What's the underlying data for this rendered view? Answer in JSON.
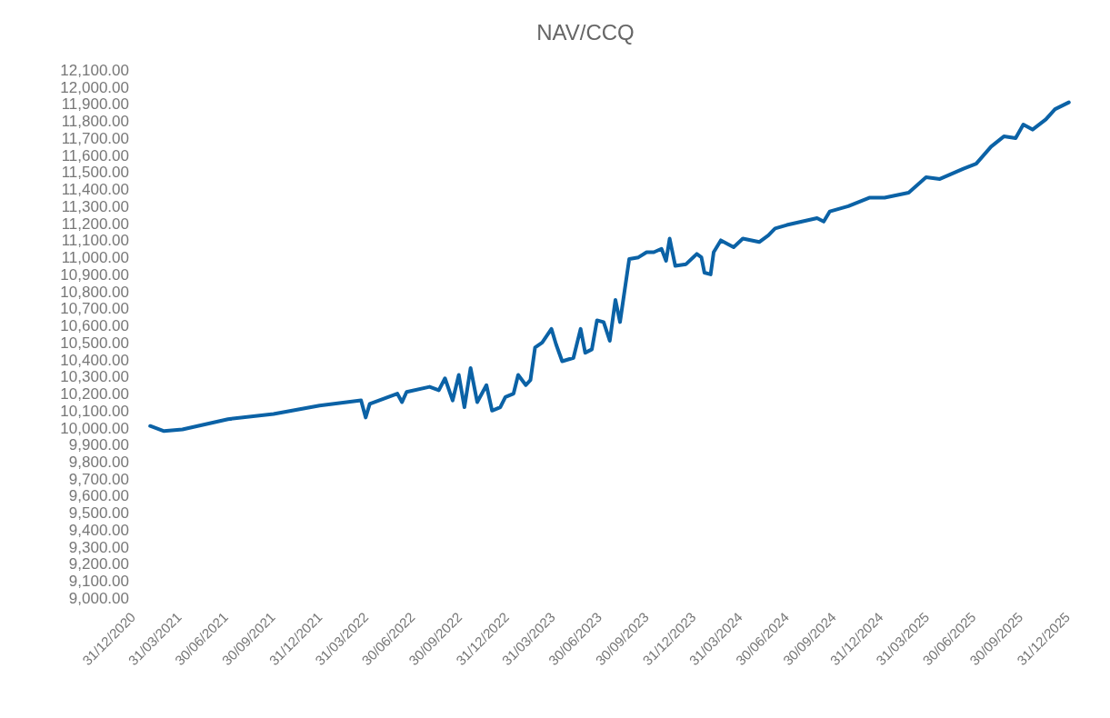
{
  "chart_data": {
    "type": "line",
    "title": "NAV/CCQ",
    "x": [
      "2021-01-27",
      "2021-02-23",
      "2021-03-31",
      "2021-06-28",
      "2021-09-25",
      "2021-12-24",
      "2022-03-15",
      "2022-03-24",
      "2022-04-01",
      "2022-05-25",
      "2022-06-03",
      "2022-06-12",
      "2022-07-27",
      "2022-08-14",
      "2022-08-26",
      "2022-09-10",
      "2022-09-22",
      "2022-10-03",
      "2022-10-15",
      "2022-10-28",
      "2022-11-15",
      "2022-11-26",
      "2022-12-12",
      "2022-12-22",
      "2023-01-07",
      "2023-01-16",
      "2023-01-31",
      "2023-02-09",
      "2023-02-18",
      "2023-03-04",
      "2023-03-22",
      "2023-03-31",
      "2023-04-12",
      "2023-05-04",
      "2023-05-18",
      "2023-05-27",
      "2023-06-09",
      "2023-06-19",
      "2023-07-02",
      "2023-07-14",
      "2023-07-25",
      "2023-08-03",
      "2023-08-21",
      "2023-09-08",
      "2023-09-24",
      "2023-10-08",
      "2023-10-23",
      "2023-11-01",
      "2023-11-08",
      "2023-11-19",
      "2023-12-10",
      "2023-12-31",
      "2024-01-09",
      "2024-01-15",
      "2024-01-27",
      "2024-02-02",
      "2024-02-16",
      "2024-03-12",
      "2024-03-30",
      "2024-05-01",
      "2024-05-19",
      "2024-06-01",
      "2024-06-24",
      "2024-08-22",
      "2024-09-04",
      "2024-09-16",
      "2024-10-22",
      "2024-12-02",
      "2025-01-01",
      "2025-02-17",
      "2025-03-23",
      "2025-04-19",
      "2025-06-04",
      "2025-06-29",
      "2025-07-28",
      "2025-08-22",
      "2025-09-14",
      "2025-09-29",
      "2025-10-17",
      "2025-11-12",
      "2025-11-30",
      "2025-12-27"
    ],
    "series": [
      {
        "color": "#0b62a6",
        "values": [
          10010,
          9980,
          9990,
          10050,
          10080,
          10130,
          10160,
          10060,
          10140,
          10200,
          10150,
          10210,
          10240,
          10220,
          10290,
          10160,
          10310,
          10120,
          10350,
          10150,
          10250,
          10100,
          10120,
          10180,
          10200,
          10310,
          10250,
          10280,
          10470,
          10500,
          10580,
          10490,
          10390,
          10410,
          10580,
          10440,
          10460,
          10630,
          10620,
          10510,
          10750,
          10620,
          10990,
          11000,
          11030,
          11030,
          11050,
          10980,
          11110,
          10950,
          10960,
          11020,
          11000,
          10910,
          10900,
          11030,
          11100,
          11060,
          11110,
          11090,
          11130,
          11170,
          11190,
          11230,
          11210,
          11270,
          11300,
          11350,
          11350,
          11380,
          11470,
          11460,
          11520,
          11550,
          11650,
          11710,
          11700,
          11780,
          11750,
          11810,
          11870,
          11910
        ]
      }
    ],
    "xlim": [
      "2020-12-31",
      "2025-12-31"
    ],
    "xticks": [
      {
        "value": "2020-12-31",
        "label": "31/12/2020"
      },
      {
        "value": "2021-03-31",
        "label": "31/03/2021"
      },
      {
        "value": "2021-06-30",
        "label": "30/06/2021"
      },
      {
        "value": "2021-09-30",
        "label": "30/09/2021"
      },
      {
        "value": "2021-12-31",
        "label": "31/12/2021"
      },
      {
        "value": "2022-03-31",
        "label": "31/03/2022"
      },
      {
        "value": "2022-06-30",
        "label": "30/06/2022"
      },
      {
        "value": "2022-09-30",
        "label": "30/09/2022"
      },
      {
        "value": "2022-12-31",
        "label": "31/12/2022"
      },
      {
        "value": "2023-03-31",
        "label": "31/03/2023"
      },
      {
        "value": "2023-06-30",
        "label": "30/06/2023"
      },
      {
        "value": "2023-09-30",
        "label": "30/09/2023"
      },
      {
        "value": "2023-12-31",
        "label": "31/12/2023"
      },
      {
        "value": "2024-03-31",
        "label": "31/03/2024"
      },
      {
        "value": "2024-06-30",
        "label": "30/06/2024"
      },
      {
        "value": "2024-09-30",
        "label": "30/09/2024"
      },
      {
        "value": "2024-12-31",
        "label": "31/12/2024"
      },
      {
        "value": "2025-03-31",
        "label": "31/03/2025"
      },
      {
        "value": "2025-06-30",
        "label": "30/06/2025"
      },
      {
        "value": "2025-09-30",
        "label": "30/09/2025"
      },
      {
        "value": "2025-12-31",
        "label": "31/12/2025"
      }
    ],
    "ylim": [
      9000,
      12100
    ],
    "yticks": [
      {
        "value": 9000,
        "label": "9,000.00"
      },
      {
        "value": 9100,
        "label": "9,100.00"
      },
      {
        "value": 9200,
        "label": "9,200.00"
      },
      {
        "value": 9300,
        "label": "9,300.00"
      },
      {
        "value": 9400,
        "label": "9,400.00"
      },
      {
        "value": 9500,
        "label": "9,500.00"
      },
      {
        "value": 9600,
        "label": "9,600.00"
      },
      {
        "value": 9700,
        "label": "9,700.00"
      },
      {
        "value": 9800,
        "label": "9,800.00"
      },
      {
        "value": 9900,
        "label": "9,900.00"
      },
      {
        "value": 10000,
        "label": "10,000.00"
      },
      {
        "value": 10100,
        "label": "10,100.00"
      },
      {
        "value": 10200,
        "label": "10,200.00"
      },
      {
        "value": 10300,
        "label": "10,300.00"
      },
      {
        "value": 10400,
        "label": "10,400.00"
      },
      {
        "value": 10500,
        "label": "10,500.00"
      },
      {
        "value": 10600,
        "label": "10,600.00"
      },
      {
        "value": 10700,
        "label": "10,700.00"
      },
      {
        "value": 10800,
        "label": "10,800.00"
      },
      {
        "value": 10900,
        "label": "10,900.00"
      },
      {
        "value": 11000,
        "label": "11,000.00"
      },
      {
        "value": 11100,
        "label": "11,100.00"
      },
      {
        "value": 11200,
        "label": "11,200.00"
      },
      {
        "value": 11300,
        "label": "11,300.00"
      },
      {
        "value": 11400,
        "label": "11,400.00"
      },
      {
        "value": 11500,
        "label": "11,500.00"
      },
      {
        "value": 11600,
        "label": "11,600.00"
      },
      {
        "value": 11700,
        "label": "11,700.00"
      },
      {
        "value": 11800,
        "label": "11,800.00"
      },
      {
        "value": 11900,
        "label": "11,900.00"
      },
      {
        "value": 12000,
        "label": "12,000.00"
      },
      {
        "value": 12100,
        "label": "12,100.00"
      }
    ]
  }
}
